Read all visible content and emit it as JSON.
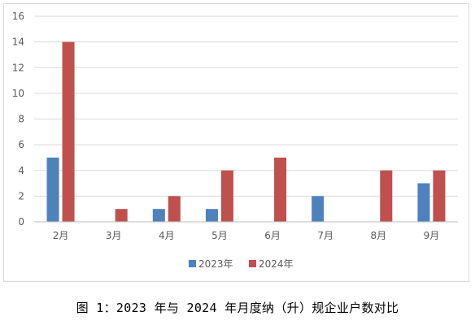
{
  "caption": "图 1：2023 年与 2024 年月度纳（升）规企业户数对比",
  "chart_data": {
    "type": "bar",
    "title": "",
    "xlabel": "",
    "ylabel": "",
    "categories": [
      "2月",
      "3月",
      "4月",
      "5月",
      "6月",
      "7月",
      "8月",
      "9月"
    ],
    "series": [
      {
        "name": "2023年",
        "color": "#4f81bd",
        "values": [
          5,
          0,
          1,
          1,
          0,
          2,
          0,
          3
        ]
      },
      {
        "name": "2024年",
        "color": "#c0504d",
        "values": [
          14,
          1,
          2,
          4,
          5,
          0,
          4,
          4
        ]
      }
    ],
    "ylim": [
      0,
      16
    ],
    "yticks": [
      "0",
      "2",
      "4",
      "6",
      "8",
      "10",
      "12",
      "14",
      "16"
    ],
    "grid": true,
    "legend_position": "bottom-center"
  }
}
